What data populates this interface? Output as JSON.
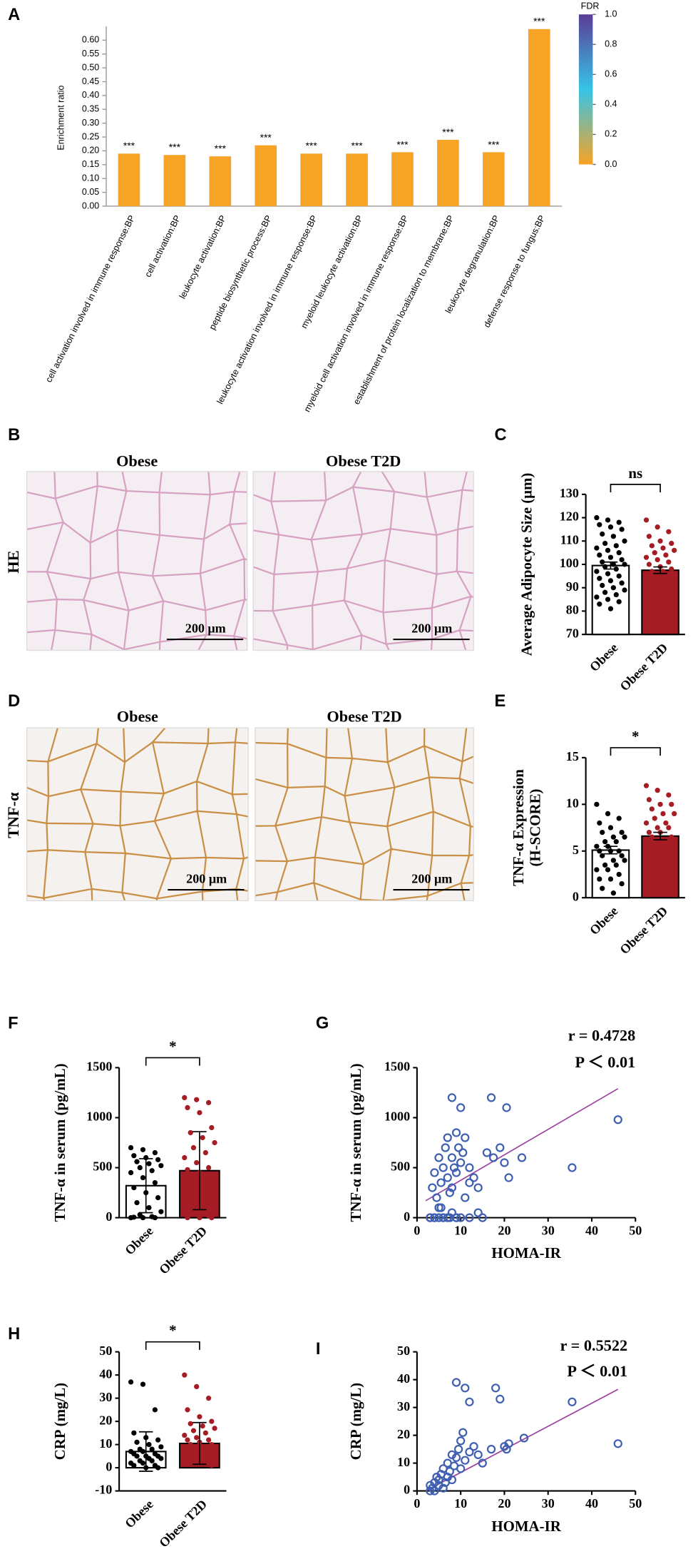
{
  "chart_data": [
    {
      "type": "bar",
      "panel": "A",
      "ylabel": "Enrichment ratio",
      "categories": [
        "cell activation involved in immune response:BP",
        "cell activation:BP",
        "leukocyte activation:BP",
        "peptide biosynthetic process:BP",
        "leukocyte activation involved in immune response:BP",
        "myeloid leukocyte activation:BP",
        "myeloid cell activation involved in immune response:BP",
        "establishment of protein localization to membrane:BP",
        "leukocyte degranulation:BP",
        "defense response to fungus:BP"
      ],
      "values": [
        0.19,
        0.185,
        0.18,
        0.22,
        0.19,
        0.19,
        0.195,
        0.24,
        0.195,
        0.64
      ],
      "significance": [
        "***",
        "***",
        "***",
        "***",
        "***",
        "***",
        "***",
        "***",
        "***",
        "***"
      ],
      "color": "#f7a325",
      "ylim": [
        0,
        0.65
      ],
      "yticks": [
        {
          "value": 0,
          "label": "0.00"
        },
        {
          "value": 0.05,
          "label": "0.05"
        },
        {
          "value": 0.1,
          "label": "0.10"
        },
        {
          "value": 0.15,
          "label": "0.15"
        },
        {
          "value": 0.2,
          "label": "0.20"
        },
        {
          "value": 0.25,
          "label": "0.25"
        },
        {
          "value": 0.3,
          "label": "0.30"
        },
        {
          "value": 0.35,
          "label": "0.35"
        },
        {
          "value": 0.4,
          "label": "0.40"
        },
        {
          "value": 0.45,
          "label": "0.45"
        },
        {
          "value": 0.5,
          "label": "0.50"
        },
        {
          "value": 0.55,
          "label": "0.55"
        },
        {
          "value": 0.6,
          "label": "0.60"
        }
      ],
      "colorbar": {
        "label": "FDR",
        "lim": [
          0,
          1
        ],
        "colors": [
          "#f7a325",
          "#37c4e6",
          "#5a3b96"
        ],
        "ticks": [
          {
            "value": 0,
            "label": "0.0"
          },
          {
            "value": 0.2,
            "label": "0.2"
          },
          {
            "value": 0.4,
            "label": "0.4"
          },
          {
            "value": 0.6,
            "label": "0.6"
          },
          {
            "value": 0.8,
            "label": "0.8"
          },
          {
            "value": 1,
            "label": "1.0"
          }
        ]
      }
    },
    {
      "type": "dotbar",
      "panel": "C",
      "ylabel": [
        "Average Adipocyte Size (μm)"
      ],
      "significance": "ns",
      "categories": [
        "Obese",
        "Obese T2D"
      ],
      "values": [
        99.5,
        97.5
      ],
      "errors": [
        1.5,
        1.4
      ],
      "colors": [
        "#ffffff",
        "#a51c24"
      ],
      "point_colors": [
        "#000000",
        "#a51c24"
      ],
      "points": [
        [
          120,
          119,
          118,
          117,
          116,
          115,
          113,
          112,
          110,
          109,
          108,
          107,
          106,
          105,
          104,
          103,
          102,
          101,
          100,
          100,
          99,
          98,
          97,
          96,
          95,
          94,
          93,
          92,
          91,
          90,
          89,
          88,
          87,
          86,
          85,
          84,
          83,
          81
        ],
        [
          119,
          116,
          114,
          112,
          110,
          109,
          108,
          107,
          106,
          105,
          104,
          103,
          102,
          101,
          100,
          99,
          98,
          97,
          97,
          96,
          95,
          94,
          93,
          92,
          91,
          90,
          89,
          88,
          87,
          86,
          85,
          84,
          82,
          80
        ]
      ],
      "ylim": [
        70,
        130
      ],
      "yticks": [
        70,
        80,
        90,
        100,
        110,
        120,
        130
      ]
    },
    {
      "type": "dotbar",
      "panel": "E",
      "ylabel": [
        "TNF-α Expression",
        "(H-SCORE)"
      ],
      "significance": "*",
      "categories": [
        "Obese",
        "Obese T2D"
      ],
      "values": [
        5.1,
        6.6
      ],
      "errors": [
        0.4,
        0.4
      ],
      "colors": [
        "#ffffff",
        "#a51c24"
      ],
      "point_colors": [
        "#000000",
        "#a51c24"
      ],
      "points": [
        [
          10,
          9,
          8.5,
          8,
          7.5,
          7,
          7,
          6.5,
          6.5,
          6,
          6,
          5.5,
          5.5,
          5,
          5,
          5,
          4.5,
          4.5,
          4,
          4,
          3.5,
          3.5,
          3,
          3,
          2.5,
          2,
          2,
          1.5,
          1,
          0.5
        ],
        [
          12,
          11.5,
          11,
          10.5,
          10,
          10,
          9.5,
          9,
          9,
          8.5,
          8,
          8,
          7.5,
          7.5,
          7,
          7,
          6.5,
          6.5,
          6,
          6,
          5.5,
          5.5,
          5,
          5,
          4.5,
          4,
          3.5,
          3,
          2,
          1
        ]
      ],
      "ylim": [
        0,
        15
      ],
      "yticks": [
        0,
        5,
        10,
        15
      ]
    },
    {
      "type": "dotbar",
      "panel": "F",
      "ylabel": [
        "TNF-α in serum (pg/mL)"
      ],
      "significance": "*",
      "categories": [
        "Obese",
        "Obese T2D"
      ],
      "values": [
        320,
        470
      ],
      "errors": [
        270,
        390
      ],
      "colors": [
        "#ffffff",
        "#a51c24"
      ],
      "point_colors": [
        "#000000",
        "#a51c24"
      ],
      "points": [
        [
          700,
          680,
          650,
          620,
          600,
          580,
          560,
          540,
          520,
          500,
          470,
          450,
          400,
          350,
          300,
          250,
          200,
          150,
          100,
          60,
          30,
          10,
          0,
          0,
          0,
          5
        ],
        [
          1200,
          1180,
          1150,
          1100,
          1050,
          900,
          850,
          800,
          750,
          700,
          650,
          600,
          550,
          500,
          480,
          450,
          400,
          350,
          300,
          250,
          200,
          150,
          100,
          50,
          20,
          0,
          0,
          0
        ]
      ],
      "ylim": [
        0,
        1500
      ],
      "yticks": [
        0,
        500,
        1000,
        1500
      ]
    },
    {
      "type": "scatter",
      "panel": "G",
      "xlabel": "HOMA-IR",
      "ylabel": "TNF-α in serum (pg/mL)",
      "annotations": [
        "r = 0.4728",
        "P ＜ 0.01"
      ],
      "color": "#3f5fb1",
      "x": [
        3,
        3.5,
        4,
        4,
        4.5,
        5,
        5,
        5.5,
        5.5,
        6,
        6,
        6.5,
        7,
        7,
        7.5,
        7.5,
        8,
        8,
        8,
        8.5,
        9,
        9,
        9,
        9.5,
        10,
        10,
        10.5,
        11,
        11,
        12,
        12,
        13,
        14,
        15,
        16,
        17,
        17.5,
        19,
        20,
        20.5,
        21,
        24,
        35.5,
        46,
        3,
        4,
        5,
        6,
        7,
        8,
        9,
        10,
        12,
        14
      ],
      "y": [
        0,
        300,
        0,
        450,
        200,
        0,
        600,
        350,
        100,
        500,
        0,
        700,
        800,
        400,
        250,
        0,
        1200,
        600,
        300,
        500,
        850,
        450,
        0,
        700,
        1100,
        550,
        650,
        800,
        200,
        350,
        500,
        400,
        300,
        0,
        650,
        1200,
        600,
        700,
        550,
        1100,
        400,
        600,
        500,
        980,
        0,
        0,
        100,
        0,
        0,
        50,
        0,
        0,
        0,
        50
      ],
      "trendline": {
        "color": "#9b3fa0",
        "x": [
          2,
          46
        ],
        "y": [
          170,
          1290
        ]
      },
      "xlim": [
        0,
        50
      ],
      "xticks": [
        0,
        10,
        20,
        30,
        40,
        50
      ],
      "ylim": [
        0,
        1500
      ],
      "yticks": [
        0,
        500,
        1000,
        1500
      ]
    },
    {
      "type": "dotbar",
      "panel": "H",
      "ylabel": [
        "CRP (mg/L)"
      ],
      "significance": "*",
      "categories": [
        "Obese",
        "Obese T2D"
      ],
      "values": [
        7,
        10.5
      ],
      "errors": [
        8.5,
        9
      ],
      "colors": [
        "#ffffff",
        "#a51c24"
      ],
      "point_colors": [
        "#000000",
        "#a51c24"
      ],
      "points": [
        [
          37,
          36,
          25,
          15,
          13,
          12,
          11,
          10,
          9,
          8,
          8,
          7,
          7,
          6,
          6,
          5,
          5,
          5,
          4,
          4,
          3,
          3,
          2,
          2,
          1,
          1,
          0,
          0
        ],
        [
          40,
          35,
          30,
          25,
          22,
          20,
          19,
          18,
          17,
          16,
          15,
          14,
          13,
          12,
          12,
          11,
          10,
          10,
          9,
          8,
          8,
          7,
          6,
          5,
          4,
          3,
          2,
          1
        ]
      ],
      "ylim": [
        -10,
        50
      ],
      "yticks": [
        -10,
        0,
        10,
        20,
        30,
        40,
        50
      ]
    },
    {
      "type": "scatter",
      "panel": "I",
      "xlabel": "HOMA-IR",
      "ylabel": "CRP (mg/L)",
      "annotations": [
        "r = 0.5522",
        "P ＜ 0.01"
      ],
      "color": "#3f5fb1",
      "x": [
        3,
        3,
        3.5,
        4,
        4,
        4.5,
        5,
        5,
        5.5,
        6,
        6,
        6.5,
        7,
        7,
        7.5,
        8,
        8,
        8.5,
        9,
        9,
        9.5,
        10,
        10,
        10.5,
        11,
        11,
        12,
        12,
        13,
        14,
        15,
        17,
        18,
        19,
        20,
        20.5,
        21,
        24.5,
        35.5,
        46
      ],
      "y": [
        0,
        2,
        1,
        3,
        0,
        5,
        2,
        4,
        6,
        1,
        8,
        3,
        10,
        5,
        7,
        13,
        4,
        9,
        39,
        12,
        15,
        18,
        8,
        21,
        37,
        11,
        14,
        32,
        16,
        13,
        10,
        15,
        37,
        33,
        16,
        15,
        17,
        19,
        32,
        17
      ],
      "trendline": {
        "color": "#9b3fa0",
        "x": [
          2,
          46
        ],
        "y": [
          0,
          36.5
        ]
      },
      "xlim": [
        0,
        50
      ],
      "xticks": [
        0,
        10,
        20,
        30,
        40,
        50
      ],
      "ylim": [
        0,
        50
      ],
      "yticks": [
        0,
        10,
        20,
        30,
        40,
        50
      ]
    }
  ],
  "micrographs": [
    {
      "panel": "B",
      "row_label": "HE",
      "columns": [
        "Obese",
        "Obese T2D"
      ],
      "column_colors": [
        "#000000",
        "#c0202e"
      ],
      "scale_bar": "200 μm",
      "stain": "#d7a1c2"
    },
    {
      "panel": "D",
      "row_label": "TNF-α",
      "columns": [
        "Obese",
        "Obese T2D"
      ],
      "column_colors": [
        "#000000",
        "#c0202e"
      ],
      "scale_bar": "200 μm",
      "stain": "#c98f45"
    }
  ]
}
